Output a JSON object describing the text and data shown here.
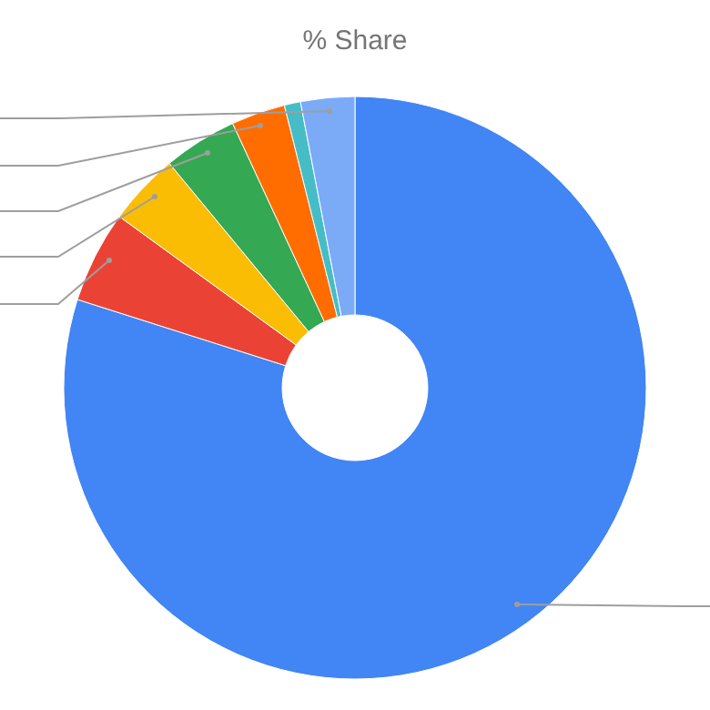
{
  "chart_data": {
    "type": "donut",
    "title": "% Share",
    "categories": [
      null,
      null,
      null,
      null,
      null,
      null,
      null
    ],
    "values": [
      79.9,
      5.1,
      4.0,
      4.1,
      3.0,
      0.9,
      3.0
    ],
    "colors": [
      "#4285f4",
      "#ea4335",
      "#fbbc04",
      "#34a853",
      "#ff6d01",
      "#46bdc6",
      "#7baaf7"
    ],
    "legend": false
  }
}
